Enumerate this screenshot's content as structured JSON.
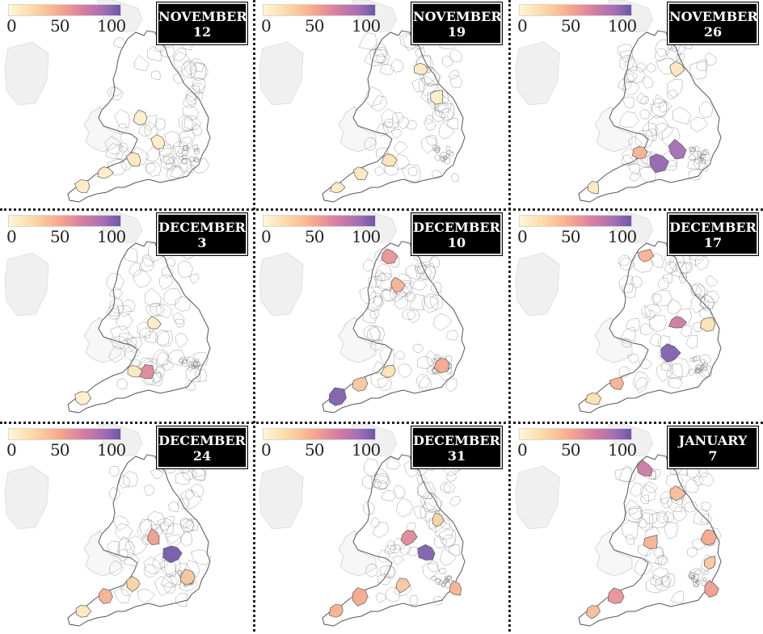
{
  "legend": {
    "min_label": "0",
    "mid_label": "50",
    "max_label": "100"
  },
  "colors": {
    "low": "#fff6d6",
    "mid_low": "#f6a98d",
    "mid": "#d97fa0",
    "high": "#6b58a8",
    "boundary": "#7a7a7a",
    "base_fill": "#ffffff",
    "neighbour_land": "#f0f0f0"
  },
  "panels": [
    {
      "month": "NOVEMBER",
      "day": "12",
      "hotspots": [
        {
          "region": "cornwall",
          "level": 8
        },
        {
          "region": "devon",
          "level": 6
        },
        {
          "region": "somerset",
          "level": 10
        },
        {
          "region": "oxfordshire",
          "level": 6
        },
        {
          "region": "west-midlands",
          "level": 5
        }
      ]
    },
    {
      "month": "NOVEMBER",
      "day": "19",
      "hotspots": [
        {
          "region": "cornwall",
          "level": 8
        },
        {
          "region": "devon",
          "level": 10
        },
        {
          "region": "somerset",
          "level": 15
        },
        {
          "region": "yorkshire",
          "level": 10
        },
        {
          "region": "lincolnshire",
          "level": 5
        }
      ]
    },
    {
      "month": "NOVEMBER",
      "day": "26",
      "hotspots": [
        {
          "region": "cornwall",
          "level": 10
        },
        {
          "region": "wiltshire",
          "level": 90
        },
        {
          "region": "berkshire",
          "level": 85
        },
        {
          "region": "bristol",
          "level": 40
        },
        {
          "region": "yorkshire",
          "level": 12
        }
      ]
    },
    {
      "month": "DECEMBER",
      "day": "3",
      "hotspots": [
        {
          "region": "wiltshire",
          "level": 60
        },
        {
          "region": "somerset",
          "level": 10
        },
        {
          "region": "cornwall",
          "level": 5
        },
        {
          "region": "midlands",
          "level": 8
        }
      ]
    },
    {
      "month": "DECEMBER",
      "day": "10",
      "hotspots": [
        {
          "region": "cornwall",
          "level": 95
        },
        {
          "region": "devon",
          "level": 30
        },
        {
          "region": "somerset",
          "level": 15
        },
        {
          "region": "cumbria",
          "level": 55
        },
        {
          "region": "lancashire",
          "level": 40
        },
        {
          "region": "london",
          "level": 45
        }
      ]
    },
    {
      "month": "DECEMBER",
      "day": "17",
      "hotspots": [
        {
          "region": "cornwall",
          "level": 15
        },
        {
          "region": "devon",
          "level": 40
        },
        {
          "region": "oxfordshire",
          "level": 95
        },
        {
          "region": "leicestershire",
          "level": 70
        },
        {
          "region": "norfolk",
          "level": 15
        },
        {
          "region": "cumbria",
          "level": 40
        }
      ]
    },
    {
      "month": "DECEMBER",
      "day": "24",
      "hotspots": [
        {
          "region": "cornwall",
          "level": 10
        },
        {
          "region": "devon",
          "level": 40
        },
        {
          "region": "bedfordshire",
          "level": 98
        },
        {
          "region": "midlands",
          "level": 50
        },
        {
          "region": "somerset",
          "level": 25
        },
        {
          "region": "london",
          "level": 30
        }
      ]
    },
    {
      "month": "DECEMBER",
      "day": "31",
      "hotspots": [
        {
          "region": "cornwall",
          "level": 40
        },
        {
          "region": "devon",
          "level": 45
        },
        {
          "region": "wiltshire",
          "level": 30
        },
        {
          "region": "bedfordshire",
          "level": 95
        },
        {
          "region": "midlands",
          "level": 60
        },
        {
          "region": "kent",
          "level": 40
        },
        {
          "region": "lincolnshire",
          "level": 25
        }
      ]
    },
    {
      "month": "JANUARY",
      "day": "7",
      "hotspots": [
        {
          "region": "cumbria",
          "level": 70
        },
        {
          "region": "devon",
          "level": 55
        },
        {
          "region": "cornwall",
          "level": 35
        },
        {
          "region": "west-midlands",
          "level": 40
        },
        {
          "region": "kent",
          "level": 50
        },
        {
          "region": "yorkshire",
          "level": 35
        },
        {
          "region": "norfolk",
          "level": 45
        },
        {
          "region": "essex",
          "level": 30
        }
      ]
    }
  ]
}
